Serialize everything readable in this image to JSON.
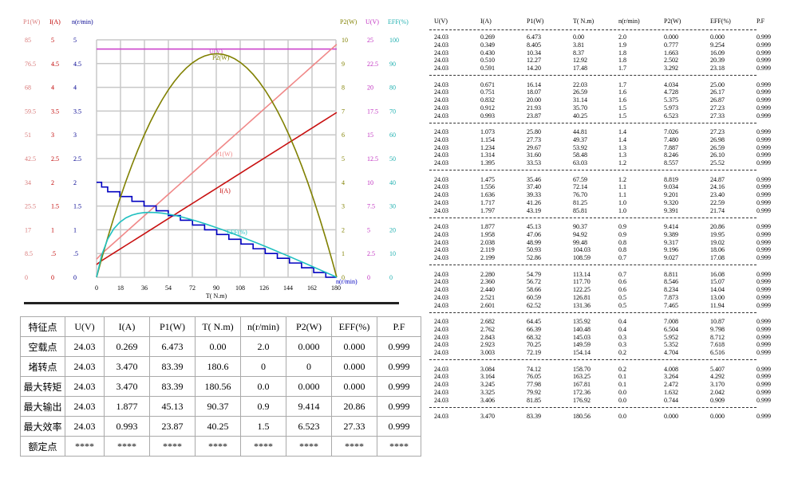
{
  "chart_data": {
    "type": "line",
    "xlabel": "T( N.m)",
    "x_ticks": [
      "0",
      "18",
      "36",
      "54",
      "72",
      "90",
      "108",
      "126",
      "144",
      "162",
      "180"
    ],
    "xlim": [
      0,
      180
    ],
    "left_axes": [
      {
        "label": "P1(W)",
        "color": "#d87878",
        "ticks": [
          "0",
          "8.5",
          "17",
          "25.5",
          "34",
          "42.5",
          "51",
          "59.5",
          "68",
          "76.5",
          "85"
        ],
        "max": 85
      },
      {
        "label": "I(A)",
        "color": "#c00000",
        "ticks": [
          "0",
          ".5",
          "1",
          "1.5",
          "2",
          "2.5",
          "3",
          "3.5",
          "4",
          "4.5",
          "5"
        ],
        "max": 5
      },
      {
        "label": "n(r/min)",
        "color": "#000090",
        "ticks": [
          "0",
          ".5",
          "1",
          "1.5",
          "2",
          "2.5",
          "3",
          "3.5",
          "4",
          "4.5",
          "5"
        ],
        "max": 5
      }
    ],
    "right_axes": [
      {
        "label": "P2(W)",
        "color": "#808000",
        "ticks": [
          "0",
          "1",
          "2",
          "3",
          "4",
          "5",
          "6",
          "7",
          "8",
          "9",
          "10"
        ],
        "max": 10
      },
      {
        "label": "U(V)",
        "color": "#c030c0",
        "ticks": [
          "0",
          "2.5",
          "5",
          "7.5",
          "10",
          "12.5",
          "15",
          "17.5",
          "20",
          "22.5",
          "25"
        ],
        "max": 25
      },
      {
        "label": "EFF(%)",
        "color": "#20b0b0",
        "ticks": [
          "0",
          "10",
          "20",
          "30",
          "40",
          "50",
          "60",
          "70",
          "80",
          "90",
          "100"
        ],
        "max": 100
      }
    ],
    "series": [
      {
        "name": "U(V)",
        "col": 0,
        "max": 25,
        "color": "#cc44cc"
      },
      {
        "name": "I(A)",
        "col": 1,
        "max": 5,
        "color": "#c81010"
      },
      {
        "name": "P1(W)",
        "col": 2,
        "max": 85,
        "color": "#f08888"
      },
      {
        "name": "n(r/min)",
        "col": 4,
        "max": 5,
        "color": "#0000c0",
        "step": true
      },
      {
        "name": "P2(W)",
        "col": 5,
        "max": 10,
        "color": "#808000"
      },
      {
        "name": "EFF(%)",
        "col": 6,
        "max": 100,
        "color": "#20c0c0"
      }
    ]
  },
  "table": {
    "headers": [
      "U(V)",
      "I(A)",
      "P1(W)",
      "T( N.m)",
      "n(r/min)",
      "P2(W)",
      "EFF(%)",
      "P.F"
    ],
    "rows": [
      [
        "24.03",
        "0.269",
        "6.473",
        "0.00",
        "2.0",
        "0.000",
        "0.000",
        "0.999"
      ],
      [
        "24.03",
        "0.349",
        "8.405",
        "3.81",
        "1.9",
        "0.777",
        "9.254",
        "0.999"
      ],
      [
        "24.03",
        "0.430",
        "10.34",
        "8.37",
        "1.8",
        "1.663",
        "16.09",
        "0.999"
      ],
      [
        "24.03",
        "0.510",
        "12.27",
        "12.92",
        "1.8",
        "2.502",
        "20.39",
        "0.999"
      ],
      [
        "24.03",
        "0.591",
        "14.20",
        "17.48",
        "1.7",
        "3.292",
        "23.18",
        "0.999"
      ],
      [
        "24.03",
        "0.671",
        "16.14",
        "22.03",
        "1.7",
        "4.034",
        "25.00",
        "0.999"
      ],
      [
        "24.03",
        "0.751",
        "18.07",
        "26.59",
        "1.6",
        "4.728",
        "26.17",
        "0.999"
      ],
      [
        "24.03",
        "0.832",
        "20.00",
        "31.14",
        "1.6",
        "5.375",
        "26.87",
        "0.999"
      ],
      [
        "24.03",
        "0.912",
        "21.93",
        "35.70",
        "1.5",
        "5.973",
        "27.23",
        "0.999"
      ],
      [
        "24.03",
        "0.993",
        "23.87",
        "40.25",
        "1.5",
        "6.523",
        "27.33",
        "0.999"
      ],
      [
        "24.03",
        "1.073",
        "25.80",
        "44.81",
        "1.4",
        "7.026",
        "27.23",
        "0.999"
      ],
      [
        "24.03",
        "1.154",
        "27.73",
        "49.37",
        "1.4",
        "7.480",
        "26.98",
        "0.999"
      ],
      [
        "24.03",
        "1.234",
        "29.67",
        "53.92",
        "1.3",
        "7.887",
        "26.59",
        "0.999"
      ],
      [
        "24.03",
        "1.314",
        "31.60",
        "58.48",
        "1.3",
        "8.246",
        "26.10",
        "0.999"
      ],
      [
        "24.03",
        "1.395",
        "33.53",
        "63.03",
        "1.2",
        "8.557",
        "25.52",
        "0.999"
      ],
      [
        "24.03",
        "1.475",
        "35.46",
        "67.59",
        "1.2",
        "8.819",
        "24.87",
        "0.999"
      ],
      [
        "24.03",
        "1.556",
        "37.40",
        "72.14",
        "1.1",
        "9.034",
        "24.16",
        "0.999"
      ],
      [
        "24.03",
        "1.636",
        "39.33",
        "76.70",
        "1.1",
        "9.201",
        "23.40",
        "0.999"
      ],
      [
        "24.03",
        "1.717",
        "41.26",
        "81.25",
        "1.0",
        "9.320",
        "22.59",
        "0.999"
      ],
      [
        "24.03",
        "1.797",
        "43.19",
        "85.81",
        "1.0",
        "9.391",
        "21.74",
        "0.999"
      ],
      [
        "24.03",
        "1.877",
        "45.13",
        "90.37",
        "0.9",
        "9.414",
        "20.86",
        "0.999"
      ],
      [
        "24.03",
        "1.958",
        "47.06",
        "94.92",
        "0.9",
        "9.389",
        "19.95",
        "0.999"
      ],
      [
        "24.03",
        "2.038",
        "48.99",
        "99.48",
        "0.8",
        "9.317",
        "19.02",
        "0.999"
      ],
      [
        "24.03",
        "2.119",
        "50.93",
        "104.03",
        "0.8",
        "9.196",
        "18.06",
        "0.999"
      ],
      [
        "24.03",
        "2.199",
        "52.86",
        "108.59",
        "0.7",
        "9.027",
        "17.08",
        "0.999"
      ],
      [
        "24.03",
        "2.280",
        "54.79",
        "113.14",
        "0.7",
        "8.811",
        "16.08",
        "0.999"
      ],
      [
        "24.03",
        "2.360",
        "56.72",
        "117.70",
        "0.6",
        "8.546",
        "15.07",
        "0.999"
      ],
      [
        "24.03",
        "2.440",
        "58.66",
        "122.25",
        "0.6",
        "8.234",
        "14.04",
        "0.999"
      ],
      [
        "24.03",
        "2.521",
        "60.59",
        "126.81",
        "0.5",
        "7.873",
        "13.00",
        "0.999"
      ],
      [
        "24.03",
        "2.601",
        "62.52",
        "131.36",
        "0.5",
        "7.465",
        "11.94",
        "0.999"
      ],
      [
        "24.03",
        "2.682",
        "64.45",
        "135.92",
        "0.4",
        "7.008",
        "10.87",
        "0.999"
      ],
      [
        "24.03",
        "2.762",
        "66.39",
        "140.48",
        "0.4",
        "6.504",
        "9.798",
        "0.999"
      ],
      [
        "24.03",
        "2.843",
        "68.32",
        "145.03",
        "0.3",
        "5.952",
        "8.712",
        "0.999"
      ],
      [
        "24.03",
        "2.923",
        "70.25",
        "149.59",
        "0.3",
        "5.352",
        "7.618",
        "0.999"
      ],
      [
        "24.03",
        "3.003",
        "72.19",
        "154.14",
        "0.2",
        "4.704",
        "6.516",
        "0.999"
      ],
      [
        "24.03",
        "3.084",
        "74.12",
        "158.70",
        "0.2",
        "4.008",
        "5.407",
        "0.999"
      ],
      [
        "24.03",
        "3.164",
        "76.05",
        "163.25",
        "0.1",
        "3.264",
        "4.292",
        "0.999"
      ],
      [
        "24.03",
        "3.245",
        "77.98",
        "167.81",
        "0.1",
        "2.472",
        "3.170",
        "0.999"
      ],
      [
        "24.03",
        "3.325",
        "79.92",
        "172.36",
        "0.0",
        "1.632",
        "2.042",
        "0.999"
      ],
      [
        "24.03",
        "3.406",
        "81.85",
        "176.92",
        "0.0",
        "0.744",
        "0.909",
        "0.999"
      ],
      [
        "24.03",
        "3.470",
        "83.39",
        "180.56",
        "0.0",
        "0.000",
        "0.000",
        "0.999"
      ]
    ]
  },
  "summary": {
    "headers": [
      "特征点",
      "U(V)",
      "I(A)",
      "P1(W)",
      "T( N.m)",
      "n(r/min)",
      "P2(W)",
      "EFF(%)",
      "P.F"
    ],
    "rows": [
      [
        "空载点",
        "24.03",
        "0.269",
        "6.473",
        "0.00",
        "2.0",
        "0.000",
        "0.000",
        "0.999"
      ],
      [
        "堵转点",
        "24.03",
        "3.470",
        "83.39",
        "180.6",
        "0",
        "0",
        "0.000",
        "0.999"
      ],
      [
        "最大转矩",
        "24.03",
        "3.470",
        "83.39",
        "180.56",
        "0.0",
        "0.000",
        "0.000",
        "0.999"
      ],
      [
        "最大输出",
        "24.03",
        "1.877",
        "45.13",
        "90.37",
        "0.9",
        "9.414",
        "20.86",
        "0.999"
      ],
      [
        "最大效率",
        "24.03",
        "0.993",
        "23.87",
        "40.25",
        "1.5",
        "6.523",
        "27.33",
        "0.999"
      ],
      [
        "额定点",
        "****",
        "****",
        "****",
        "****",
        "****",
        "****",
        "****",
        "****"
      ]
    ]
  }
}
